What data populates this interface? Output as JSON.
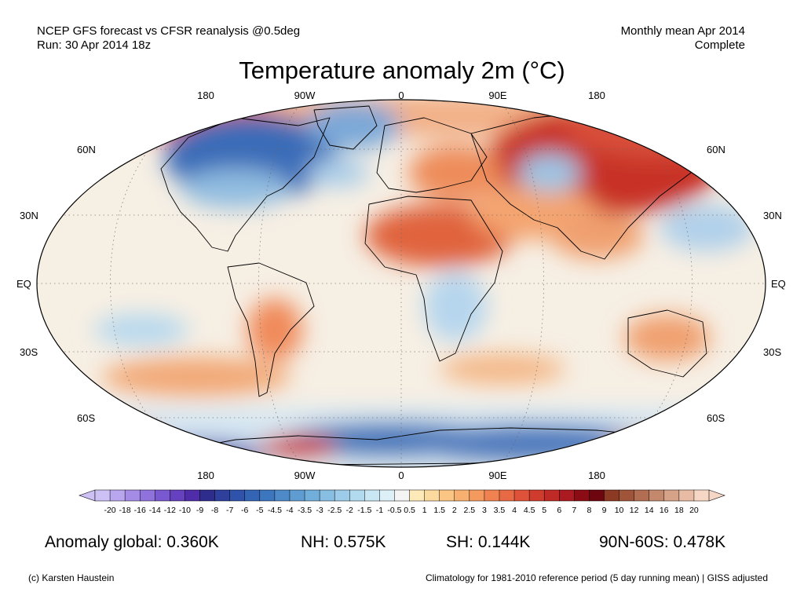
{
  "header": {
    "line1_left": "NCEP GFS forecast vs CFSR reanalysis @0.5deg",
    "line2_left": "Run: 30 Apr 2014 18z",
    "line1_right": "Monthly mean Apr 2014",
    "line2_right": "Complete"
  },
  "title": "Temperature anomaly 2m (°C)",
  "lon_labels": [
    "180",
    "90W",
    "0",
    "90E",
    "180"
  ],
  "lat_labels": [
    "60N",
    "30N",
    "EQ",
    "30S",
    "60S"
  ],
  "colorbar": {
    "ticks": [
      "-20",
      "-18",
      "-16",
      "-14",
      "-12",
      "-10",
      "-9",
      "-8",
      "-7",
      "-6",
      "-5",
      "-4.5",
      "-4",
      "-3.5",
      "-3",
      "-2.5",
      "-2",
      "-1.5",
      "-1",
      "-0.5",
      "0.5",
      "1",
      "1.5",
      "2",
      "2.5",
      "3",
      "3.5",
      "4",
      "4.5",
      "5",
      "6",
      "7",
      "8",
      "9",
      "10",
      "12",
      "14",
      "16",
      "18",
      "20"
    ],
    "colors": [
      "#ccc0f4",
      "#b8a6ee",
      "#a48ce6",
      "#8f72dc",
      "#7a58d0",
      "#6540bf",
      "#4f2ca8",
      "#2e2c8c",
      "#2f3f9c",
      "#2f52aa",
      "#3464b4",
      "#3c76be",
      "#4e8ac8",
      "#5e9cd2",
      "#72aeda",
      "#88bee2",
      "#9ccce9",
      "#b2daef",
      "#c8e6f4",
      "#ddf0f8",
      "#f4f4f4",
      "#fdeab8",
      "#fcd99c",
      "#fbc584",
      "#f8b070",
      "#f49a5e",
      "#ef8250",
      "#e86a44",
      "#dd5238",
      "#cf3c2e",
      "#bf2a26",
      "#aa1a20",
      "#8c0c16",
      "#6e0610",
      "#8c3a24",
      "#a0553a",
      "#b16e52",
      "#c4886c",
      "#d6a288",
      "#e8bca4",
      "#f6d6c4"
    ]
  },
  "stats": {
    "global": "Anomaly global: 0.360K",
    "nh": "NH: 0.575K",
    "sh": "SH: 0.144K",
    "arctic": "90N-60S: 0.478K"
  },
  "footer": {
    "credit": "(c) Karsten Haustein",
    "note": "Climatology for 1981-2010 reference period (5 day running mean) | GISS adjusted"
  }
}
